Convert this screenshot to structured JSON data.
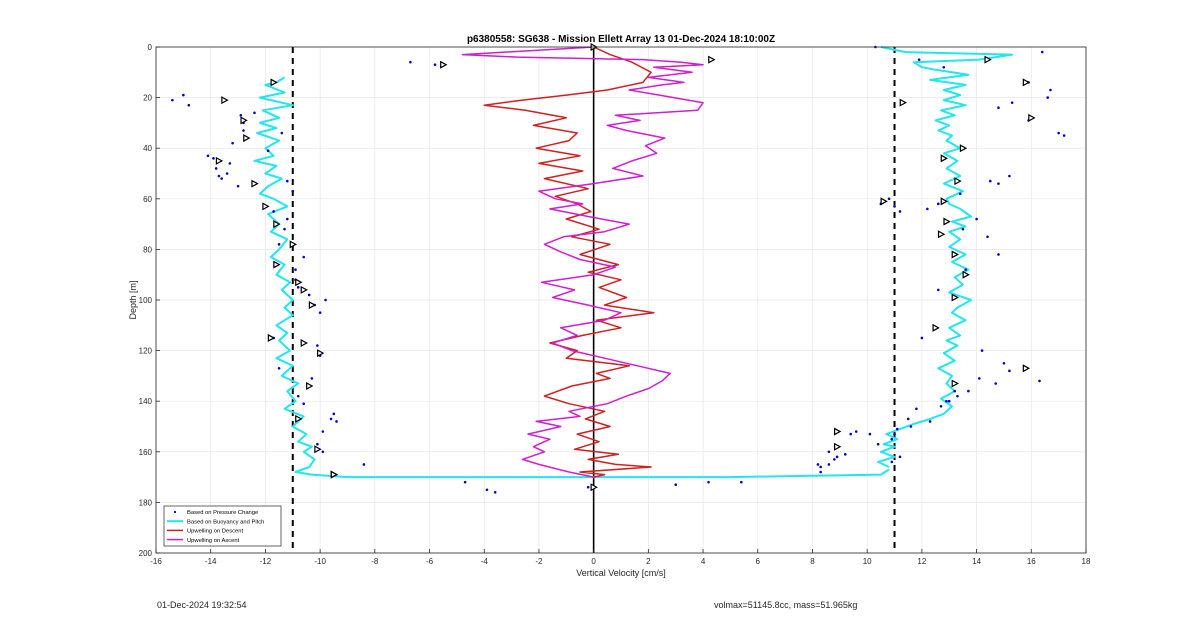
{
  "footer": {
    "timestamp": "01-Dec-2024 19:32:54",
    "info": "volmax=51145.8cc, mass=51.965kg"
  },
  "colors": {
    "pressure": "#0000cc",
    "buoyancy": "#22e6ee",
    "descent": "#d21f1f",
    "ascent": "#d01ed0",
    "grid": "#e6e6e6",
    "axis": "#262626"
  },
  "chart_data": {
    "type": "scatter",
    "title": "p6380558: SG638 - Mission Ellett Array 13 01-Dec-2024 18:10:00Z",
    "xlabel": "Vertical Velocity [cm/s]",
    "ylabel": "Depth [m]",
    "xlim": [
      -16,
      18
    ],
    "ylim": [
      0,
      200
    ],
    "y_reversed": true,
    "grid": true,
    "x_ticks": [
      -16,
      -14,
      -12,
      -10,
      -8,
      -6,
      -4,
      -2,
      0,
      2,
      4,
      6,
      8,
      10,
      12,
      14,
      16,
      18
    ],
    "y_ticks": [
      0,
      20,
      40,
      60,
      80,
      100,
      120,
      140,
      160,
      180,
      200
    ],
    "legend_position": "bottom-left",
    "legend": [
      "Based on Pressure Change",
      "Based on Buoyancy and Pitch",
      "Upwelling on Descent",
      "Upwelling on Ascent"
    ],
    "reference_lines": {
      "x": [
        -11,
        11
      ],
      "style": "dashed"
    },
    "zero_line": {
      "x": 0
    },
    "series": [
      {
        "name": "Based on Buoyancy and Pitch",
        "kind": "line",
        "branches": [
          {
            "x": [
              -11.3,
              -11.6,
              -12.0,
              -11.3,
              -12.2,
              -11.0,
              -12.1,
              -11.5,
              -12.2,
              -11.6,
              -12.3,
              -11.5,
              -12.0,
              -11.7,
              -12.4,
              -11.6,
              -12.0,
              -11.4,
              -11.9,
              -12.2,
              -11.7,
              -11.2,
              -11.9,
              -11.5,
              -11.8,
              -11.2,
              -11.5,
              -11.8,
              -11.3,
              -11.6,
              -11.1,
              -11.4,
              -11.0,
              -11.3,
              -11.0,
              -11.6,
              -11.2,
              -11.5,
              -11.1,
              -11.6,
              -11.0,
              -11.4,
              -10.8,
              -11.2,
              -10.9,
              -11.3,
              -10.6,
              -11.0,
              -10.5,
              -10.8,
              -10.3,
              -10.6,
              -10.2,
              -10.4,
              -10.9,
              -10.3,
              -9.0,
              -4.0,
              0.0,
              5.0,
              10.5,
              10.8
            ],
            "y": [
              12,
              14,
              15,
              18,
              20,
              23,
              25,
              28,
              30,
              32,
              34,
              37,
              40,
              43,
              45,
              47,
              50,
              52,
              55,
              58,
              60,
              63,
              66,
              70,
              73,
              76,
              80,
              83,
              86,
              90,
              93,
              96,
              100,
              103,
              106,
              110,
              113,
              116,
              120,
              123,
              126,
              130,
              133,
              136,
              140,
              143,
              146,
              150,
              153,
              156,
              158,
              160,
              163,
              166,
              168,
              169,
              170,
              170,
              170,
              170,
              169,
              167
            ]
          },
          {
            "x": [
              10.8,
              10.4,
              11.0,
              10.5,
              11.0,
              10.6,
              11.1,
              10.7,
              11.2,
              11.7,
              12.3,
              12.8,
              13.1,
              12.7,
              13.2,
              12.9,
              13.1,
              12.6,
              13.2,
              12.8,
              13.3,
              12.9,
              13.4,
              13.0,
              13.6,
              13.1,
              13.3,
              13.8,
              13.0,
              13.5,
              13.2,
              13.7,
              13.1,
              13.6,
              13.0,
              13.4,
              13.0,
              13.6,
              13.1,
              13.8,
              13.4,
              13.0,
              12.9,
              13.5,
              12.8,
              13.4,
              12.9,
              13.3,
              12.8,
              13.4,
              12.9,
              13.1,
              12.6,
              13.0,
              12.5,
              13.2,
              12.7,
              13.6,
              12.8,
              13.4,
              12.8,
              13.6,
              12.3,
              13.7,
              12.5,
              12.0,
              11.7,
              14.1,
              15.3,
              11.4,
              10.5
            ],
            "y": [
              166,
              164,
              162,
              160,
              158,
              157,
              155,
              153,
              151,
              149,
              147,
              145,
              142,
              139,
              136,
              133,
              130,
              127,
              124,
              121,
              118,
              116,
              114,
              111,
              108,
              105,
              103,
              100,
              97,
              94,
              91,
              88,
              85,
              82,
              79,
              76,
              73,
              71,
              69,
              67,
              64,
              62,
              60,
              57,
              54,
              51,
              48,
              45,
              42,
              40,
              37,
              35,
              33,
              31,
              29,
              27,
              25,
              23,
              21,
              19,
              17,
              15,
              13,
              11,
              9,
              8,
              6,
              5,
              3,
              2,
              0
            ]
          }
        ]
      },
      {
        "name": "Upwelling on Descent",
        "kind": "line",
        "x": [
          0.0,
          0.6,
          1.4,
          2.1,
          1.8,
          0.5,
          -1.0,
          -2.6,
          -4.0,
          -2.5,
          -1.0,
          -2.2,
          -0.6,
          -0.9,
          -2.1,
          -0.5,
          -2.0,
          -0.4,
          -1.8,
          -0.2,
          -1.4,
          -0.6,
          -0.1,
          -1.0,
          0.2,
          -0.8,
          0.6,
          -0.5,
          0.9,
          -0.2,
          1.0,
          0.2,
          1.2,
          0.4,
          2.2,
          0.1,
          1.0,
          -0.4,
          -1.6,
          -0.6,
          -1.0,
          1.3,
          0.1,
          0.6,
          -0.8,
          -1.8,
          -0.9,
          0.4,
          -0.3,
          0.6,
          -0.6,
          0.2,
          -0.7,
          0.9,
          -0.2,
          0.8,
          2.1,
          -0.5,
          0.4,
          0.0
        ],
        "y": [
          0,
          3,
          6,
          10,
          14,
          17,
          19,
          21,
          23,
          25,
          28,
          31,
          34,
          37,
          40,
          43,
          46,
          49,
          52,
          56,
          59,
          62,
          65,
          68,
          72,
          75,
          78,
          82,
          86,
          89,
          92,
          95,
          99,
          102,
          105,
          108,
          111,
          114,
          117,
          120,
          123,
          126,
          129,
          131,
          134,
          138,
          141,
          144,
          147,
          150,
          153,
          156,
          159,
          161,
          163,
          165,
          166,
          168,
          169,
          170
        ]
      },
      {
        "name": "Upwelling on Ascent",
        "kind": "line",
        "x": [
          0.0,
          -0.9,
          -2.0,
          -2.6,
          -1.8,
          -2.2,
          -1.6,
          -2.4,
          -1.2,
          -2.1,
          -0.5,
          -0.9,
          0.5,
          1.2,
          2.0,
          2.5,
          2.8,
          1.6,
          0.4,
          -0.8,
          -1.5,
          -0.6,
          -1.2,
          0.4,
          1.0,
          -0.2,
          -1.5,
          -0.7,
          -1.9,
          0.0,
          0.8,
          -0.5,
          -1.2,
          -1.8,
          -1.1,
          0.4,
          1.3,
          -0.2,
          -1.6,
          -0.4,
          -1.4,
          -2.0,
          0.0,
          1.8,
          0.7,
          1.4,
          2.3,
          1.9,
          2.6,
          1.2,
          0.5,
          1.7,
          0.8,
          3.8,
          4.0,
          2.4,
          1.3,
          2.5,
          3.3,
          2.0,
          3.6,
          2.2,
          4.0,
          3.2,
          1.8,
          -2.8,
          -4.8,
          0.0
        ],
        "y": [
          170,
          168,
          165,
          163,
          160,
          158,
          155,
          153,
          150,
          148,
          146,
          144,
          141,
          138,
          135,
          132,
          129,
          126,
          123,
          120,
          117,
          114,
          111,
          108,
          105,
          102,
          99,
          96,
          93,
          90,
          87,
          84,
          81,
          78,
          75,
          73,
          70,
          67,
          64,
          62,
          60,
          57,
          54,
          51,
          48,
          45,
          42,
          39,
          36,
          33,
          31,
          29,
          27,
          25,
          22,
          19,
          17,
          15,
          14,
          12,
          10,
          8,
          7,
          6,
          5,
          4,
          3,
          0
        ]
      },
      {
        "name": "Based on Pressure Change",
        "kind": "points",
        "x": [
          -15.4,
          -15.0,
          -14.8,
          -13.9,
          -13.8,
          -13.3,
          -13.0,
          -12.8,
          -13.7,
          -13.2,
          -13.6,
          -12.9,
          -14.1,
          -13.4,
          -12.8,
          -12.4,
          -11.4,
          -11.9,
          -11.2,
          -11.0,
          -11.7,
          -11.2,
          -11.3,
          -11.5,
          -10.9,
          -10.6,
          -10.8,
          -10.9,
          -10.2,
          -10.4,
          -10.0,
          -9.8,
          -10.1,
          -11.7,
          -11.5,
          -10.3,
          -10.0,
          -10.8,
          -10.6,
          -9.6,
          -9.9,
          -10.1,
          -9.5,
          -9.4,
          -9.9,
          -8.4,
          -6.7,
          -5.8,
          -4.7,
          -3.6,
          -3.9,
          -0.2,
          3.0,
          4.2,
          5.4,
          8.3,
          8.6,
          8.9,
          10.3,
          10.9,
          11.2,
          11.0,
          11.6,
          12.3,
          12.7,
          13.0,
          13.3,
          13.7,
          14.7,
          15.2,
          16.3,
          16.7,
          17.0,
          15.9,
          14.8,
          12.8,
          11.9,
          12.2,
          12.6,
          13.4,
          13.5,
          14.4,
          14.0,
          14.8,
          13.6,
          12.6,
          12.0,
          14.2,
          15.0,
          14.1,
          13.2,
          12.9,
          11.8,
          11.5,
          11.1,
          10.9,
          10.4,
          10.1,
          9.6,
          9.2,
          8.8,
          8.6,
          8.2,
          8.3,
          9.4,
          10.5,
          11.2,
          11.0,
          10.8,
          14.8,
          15.2,
          14.5,
          15.9,
          16.4,
          17.2,
          15.3,
          16.6
        ],
        "y": [
          21,
          19,
          23,
          44,
          48,
          46,
          55,
          30,
          51,
          38,
          52,
          27,
          43,
          50,
          33,
          26,
          34,
          41,
          53,
          57,
          65,
          68,
          72,
          78,
          88,
          83,
          95,
          92,
          102,
          98,
          105,
          100,
          118,
          115,
          127,
          131,
          122,
          138,
          141,
          147,
          152,
          157,
          145,
          148,
          160,
          165,
          6,
          7,
          172,
          176,
          175,
          174,
          173,
          172,
          172,
          168,
          165,
          162,
          0,
          164,
          162,
          153,
          150,
          148,
          142,
          140,
          138,
          136,
          133,
          128,
          132,
          17,
          34,
          29,
          24,
          8,
          5,
          64,
          62,
          58,
          72,
          75,
          68,
          82,
          88,
          96,
          115,
          120,
          125,
          131,
          136,
          140,
          143,
          147,
          151,
          155,
          157,
          153,
          152,
          161,
          163,
          160,
          165,
          166,
          153,
          62,
          65,
          63,
          60,
          54,
          51,
          53,
          14,
          2,
          35,
          22,
          20
        ]
      },
      {
        "name": "triangle markers",
        "kind": "markers",
        "x": [
          -11.7,
          -13.5,
          -12.8,
          -12.7,
          -12.4,
          -13.7,
          -12.0,
          -11.6,
          -11.0,
          -11.6,
          -10.8,
          -10.6,
          -10.3,
          -10.6,
          -10.0,
          -11.8,
          -10.4,
          -10.8,
          -9.5,
          -10.1,
          -9.5,
          0.0,
          0.0,
          4.3,
          -5.5,
          14.4,
          11.3,
          15.8,
          16.0,
          13.5,
          12.8,
          13.3,
          12.9,
          12.7,
          13.2,
          13.6,
          13.2,
          12.5,
          13.2,
          15.8,
          10.6,
          8.9,
          8.9,
          12.8
        ],
        "y": [
          14,
          21,
          29,
          36,
          54,
          45,
          63,
          70,
          78,
          86,
          93,
          96,
          102,
          117,
          121,
          115,
          134,
          147,
          169,
          159,
          169,
          174,
          0,
          5,
          7,
          5,
          22,
          14,
          28,
          40,
          44,
          53,
          69,
          74,
          82,
          90,
          99,
          111,
          133,
          127,
          61,
          152,
          158,
          61
        ]
      }
    ]
  }
}
